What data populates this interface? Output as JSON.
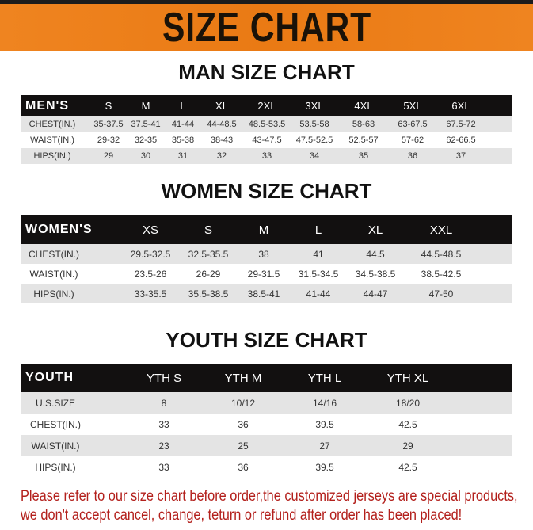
{
  "banner": {
    "title": "SIZE CHART",
    "color": "#ea7a14"
  },
  "tables": [
    {
      "title": "MAN SIZE CHART",
      "header_label": "MEN'S",
      "columns": [
        "S",
        "M",
        "L",
        "XL",
        "2XL",
        "3XL",
        "4XL",
        "5XL",
        "6XL"
      ],
      "rows": [
        {
          "label": "CHEST(IN.)",
          "values": [
            "35-37.5",
            "37.5-41",
            "41-44",
            "44-48.5",
            "48.5-53.5",
            "53.5-58",
            "58-63",
            "63-67.5",
            "67.5-72"
          ]
        },
        {
          "label": "WAIST(IN.)",
          "values": [
            "29-32",
            "32-35",
            "35-38",
            "38-43",
            "43-47.5",
            "47.5-52.5",
            "52.5-57",
            "57-62",
            "62-66.5"
          ]
        },
        {
          "label": "HIPS(IN.)",
          "values": [
            "29",
            "30",
            "31",
            "32",
            "33",
            "34",
            "35",
            "36",
            "37"
          ]
        }
      ]
    },
    {
      "title": "WOMEN SIZE CHART",
      "header_label": "WOMEN'S",
      "columns": [
        "XS",
        "S",
        "M",
        "L",
        "XL",
        "XXL"
      ],
      "rows": [
        {
          "label": "CHEST(IN.)",
          "values": [
            "29.5-32.5",
            "32.5-35.5",
            "38",
            "41",
            "44.5",
            "44.5-48.5"
          ]
        },
        {
          "label": "WAIST(IN.)",
          "values": [
            "23.5-26",
            "26-29",
            "29-31.5",
            "31.5-34.5",
            "34.5-38.5",
            "38.5-42.5"
          ]
        },
        {
          "label": "HIPS(IN.)",
          "values": [
            "33-35.5",
            "35.5-38.5",
            "38.5-41",
            "41-44",
            "44-47",
            "47-50"
          ]
        }
      ]
    },
    {
      "title": "YOUTH SIZE CHART",
      "header_label": "YOUTH",
      "columns": [
        "YTH S",
        "YTH M",
        "YTH L",
        "YTH XL"
      ],
      "rows": [
        {
          "label": "U.S.SIZE",
          "values": [
            "8",
            "10/12",
            "14/16",
            "18/20"
          ]
        },
        {
          "label": "CHEST(IN.)",
          "values": [
            "33",
            "36",
            "39.5",
            "42.5"
          ]
        },
        {
          "label": "WAIST(IN.)",
          "values": [
            "23",
            "25",
            "27",
            "29"
          ]
        },
        {
          "label": "HIPS(IN.)",
          "values": [
            "33",
            "36",
            "39.5",
            "42.5"
          ]
        }
      ]
    }
  ],
  "notice": {
    "line1": "Please refer to our size chart before order,the customized jerseys are special products,",
    "line2": "we don't accept cancel, change, teturn or refund after order has been placed!",
    "color": "#b3201c"
  }
}
